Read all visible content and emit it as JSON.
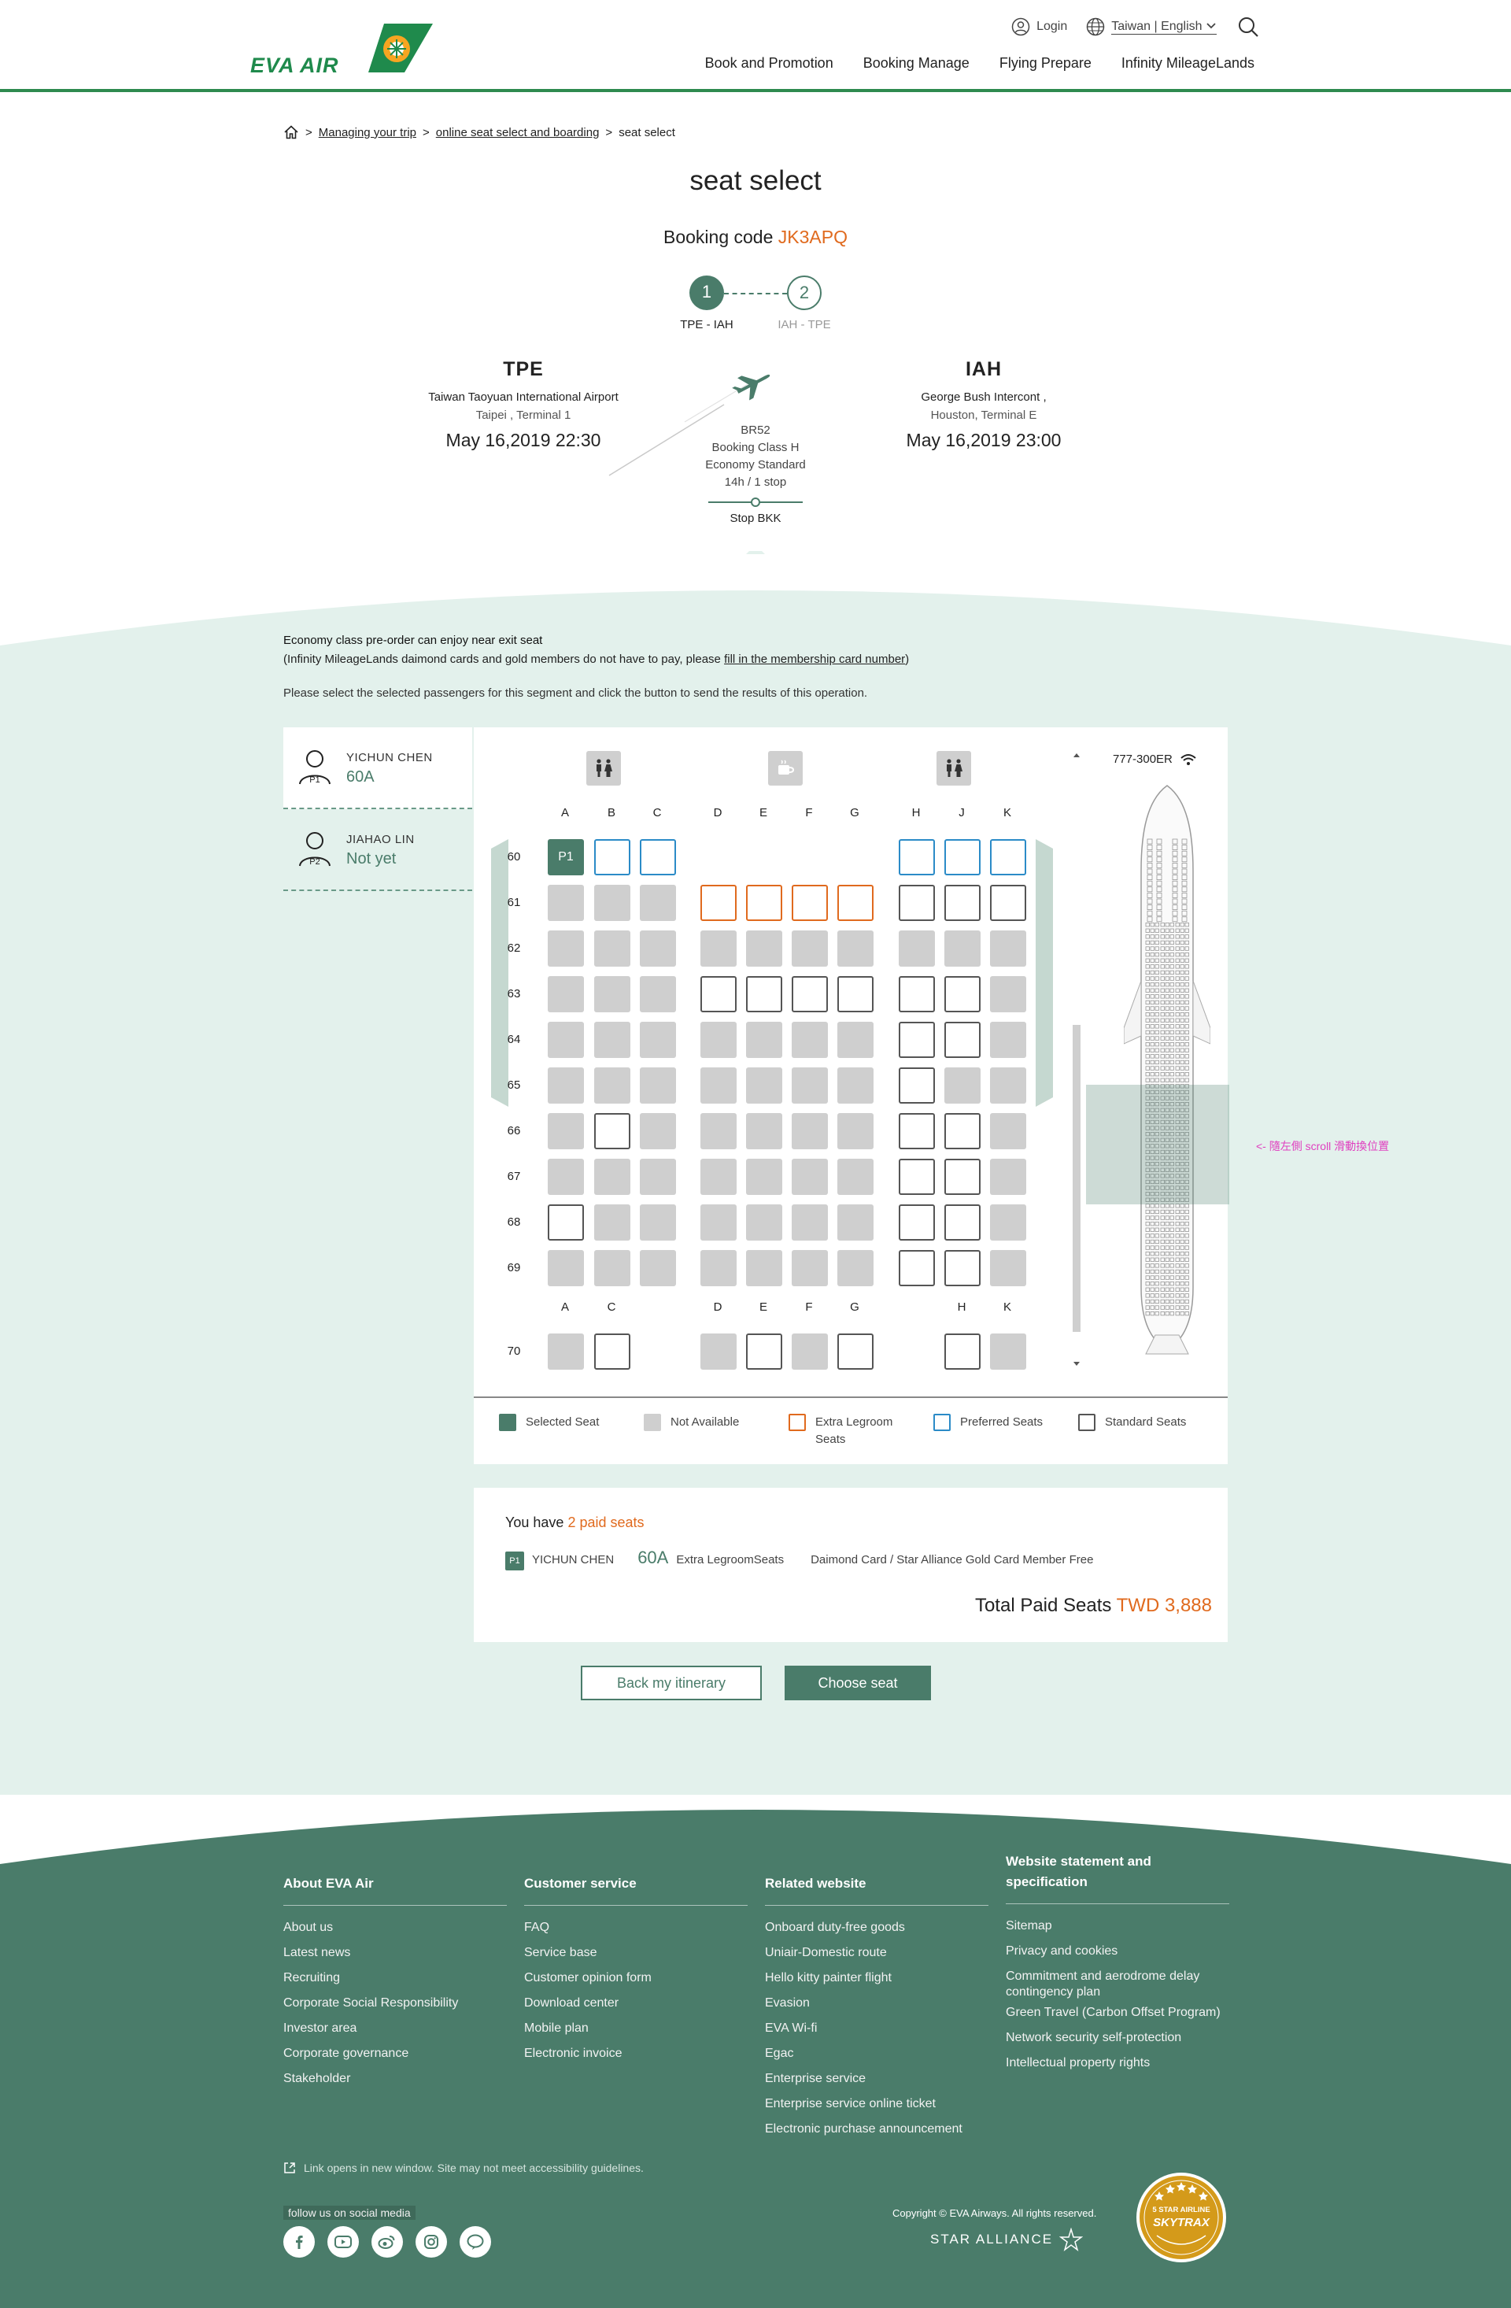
{
  "header": {
    "logo_text": "EVA AIR",
    "login": "Login",
    "language": "Taiwan | English",
    "nav": [
      "Book and Promotion",
      "Booking Manage",
      "Flying Prepare",
      "Infinity MileageLands"
    ]
  },
  "breadcrumb": {
    "sep": ">",
    "items": [
      "Managing your trip",
      "online seat select  and boarding",
      "seat select"
    ]
  },
  "page": {
    "title": "seat select",
    "booking_label": "Booking code",
    "booking_code": "JK3APQ"
  },
  "steps": [
    {
      "num": "1",
      "label": "TPE - IAH",
      "active": true
    },
    {
      "num": "2",
      "label": "IAH - TPE",
      "active": false
    }
  ],
  "flight": {
    "origin": {
      "code": "TPE",
      "name": "Taiwan Taoyuan International Airport",
      "city": "Taipei , Terminal 1",
      "time": "May 16,2019 22:30"
    },
    "destination": {
      "code": "IAH",
      "name": "George Bush Intercont ,",
      "city": "Houston, Terminal E",
      "time": "May 16,2019 23:00"
    },
    "flight_no": "BR52",
    "booking_class": "Booking Class H",
    "cabin": "Economy Standard",
    "duration": "14h / 1 stop",
    "stop": "Stop BKK"
  },
  "notice": {
    "line1": "Economy class pre-order can enjoy near exit seat",
    "line2_pre": "(Infinity MileageLands daimond cards and gold members do not have to pay, please ",
    "line2_link": "fill in the membership card number",
    "line2_post": ")",
    "instruction": "Please select the selected passengers for this segment and click the button to send the results of this operation."
  },
  "passengers": [
    {
      "name": "YICHUN CHEN",
      "tag": "P1",
      "seat": "60A"
    },
    {
      "name": "JIAHAO LIN",
      "tag": "P2",
      "seat": "Not yet"
    }
  ],
  "seatmap": {
    "aircraft": "777-300ER",
    "columns_top": [
      "A",
      "B",
      "C",
      "D",
      "E",
      "F",
      "G",
      "H",
      "J",
      "K"
    ],
    "columns_bottom": [
      "A",
      "C",
      "D",
      "E",
      "F",
      "G",
      "H",
      "K"
    ],
    "rows": [
      "60",
      "61",
      "62",
      "63",
      "64",
      "65",
      "66",
      "67",
      "68",
      "69"
    ],
    "last_row": "70",
    "selected_tag": "P1",
    "scroll_hint": "<- 隨左側 scroll 滑動換位置"
  },
  "legend": [
    {
      "label": "Selected Seat",
      "color": "#4a7c6a"
    },
    {
      "label": "Not Available",
      "color": "#cfcfcf"
    },
    {
      "label": "Extra Legroom Seats",
      "color": "#e06a1e"
    },
    {
      "label": "Preferred Seats",
      "color": "#2b8bc7"
    },
    {
      "label": "Standard Seats",
      "color": "#555555"
    }
  ],
  "paid": {
    "prefix": "You have",
    "count": "2 paid seats",
    "pax_tag": "P1",
    "pax_name": "YICHUN CHEN",
    "seat": "60A",
    "seat_type": "Extra LegroomSeats",
    "note": "Daimond Card / Star Alliance Gold Card Member Free",
    "total_label": "Total Paid Seats",
    "total_value": "TWD 3,888"
  },
  "actions": {
    "back": "Back my itinerary",
    "choose": "Choose seat"
  },
  "footer": {
    "columns": [
      {
        "title": "About EVA Air",
        "items": [
          "About us",
          "Latest news",
          "Recruiting",
          "Corporate Social Responsibility",
          "Investor area",
          "Corporate governance",
          "Stakeholder"
        ]
      },
      {
        "title": "Customer service",
        "items": [
          "FAQ",
          "Service base",
          "Customer opinion form",
          "Download center",
          "Mobile plan",
          "Electronic invoice"
        ]
      },
      {
        "title": "Related website",
        "items": [
          "Onboard duty-free goods",
          "Uniair-Domestic route",
          "Hello kitty painter flight",
          "Evasion",
          "EVA Wi-fi",
          "Egac",
          "Enterprise service",
          "Enterprise service online ticket",
          "Electronic purchase announcement"
        ]
      },
      {
        "title": "Website statement and specification",
        "items": [
          "Sitemap",
          "Privacy and  cookies",
          "Commitment and aerodrome delay contingency plan",
          "Green Travel (Carbon Offset Program)",
          "Network security self-protection",
          "Intellectual property rights"
        ]
      }
    ],
    "external_note": "Link opens in new window. Site may not meet accessibility guidelines.",
    "social_label": "follow us on social media",
    "copyright": "Copyright © EVA Airways. All rights reserved.",
    "star_alliance": "STAR ALLIANCE",
    "skytrax_line1": "5 STAR AIRLINE",
    "skytrax_line2": "SKYTRAX"
  },
  "colors": {
    "brand_green": "#4a7c6a",
    "header_green": "#2e8a4f",
    "accent_orange": "#e06a1e",
    "preferred_blue": "#2b8bc7",
    "mint_bg": "#e3f1ec"
  }
}
